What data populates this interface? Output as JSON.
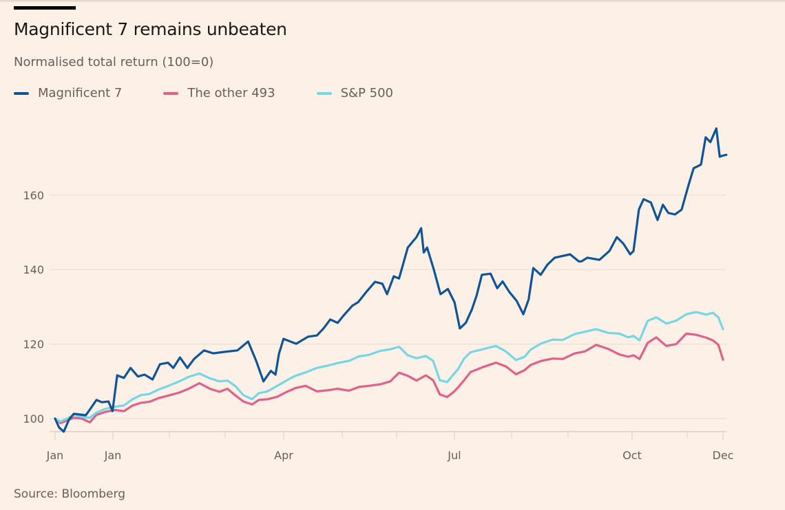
{
  "header": {
    "title": "Magnificent 7 remains unbeaten",
    "subtitle": "Normalised total return (100=0)"
  },
  "footer": {
    "source": "Source: Bloomberg"
  },
  "colors": {
    "background": "#fdf0e6",
    "mag7": "#0f5499",
    "other493": "#e0608a",
    "sp500": "#73d7e6",
    "grid": "#e6dbd2",
    "text": "#66605c"
  },
  "chart_data": {
    "type": "line",
    "title": "Magnificent 7 remains unbeaten",
    "subtitle": "Normalised total return (100=0)",
    "xlabel": "",
    "ylabel": "",
    "ylim": [
      96.5,
      180
    ],
    "yticks": [
      100,
      120,
      140,
      160
    ],
    "xlim": [
      0,
      1
    ],
    "x_ticks": [
      0,
      0.0866,
      0.1711,
      0.2546,
      0.3423,
      0.4299,
      0.5113,
      0.5979,
      0.6835,
      0.768,
      0.8639,
      0.9464,
      1.0
    ],
    "x_tick_labels": [
      {
        "pos": 0,
        "label": "Jan"
      },
      {
        "pos": 0.0866,
        "label": "Jan"
      },
      {
        "pos": 0.3423,
        "label": "Apr"
      },
      {
        "pos": 0.5979,
        "label": "Jul"
      },
      {
        "pos": 0.8639,
        "label": "Oct"
      },
      {
        "pos": 1.0,
        "label": "Dec"
      }
    ],
    "grid": true,
    "legend": "top-left",
    "source": "Source: Bloomberg",
    "series": [
      {
        "name": "Magnificent 7",
        "color": "#0f5499",
        "x": [
          0,
          0.006,
          0.013,
          0.021,
          0.028,
          0.046,
          0.052,
          0.062,
          0.07,
          0.08,
          0.086,
          0.093,
          0.103,
          0.113,
          0.124,
          0.134,
          0.146,
          0.157,
          0.169,
          0.177,
          0.187,
          0.198,
          0.208,
          0.223,
          0.237,
          0.253,
          0.273,
          0.289,
          0.301,
          0.312,
          0.323,
          0.33,
          0.335,
          0.342,
          0.361,
          0.379,
          0.392,
          0.402,
          0.412,
          0.423,
          0.433,
          0.445,
          0.454,
          0.466,
          0.479,
          0.49,
          0.497,
          0.507,
          0.515,
          0.528,
          0.541,
          0.548,
          0.552,
          0.557,
          0.567,
          0.577,
          0.588,
          0.598,
          0.606,
          0.615,
          0.624,
          0.631,
          0.639,
          0.652,
          0.662,
          0.67,
          0.68,
          0.691,
          0.701,
          0.709,
          0.716,
          0.727,
          0.737,
          0.748,
          0.771,
          0.784,
          0.788,
          0.797,
          0.815,
          0.83,
          0.841,
          0.851,
          0.861,
          0.866,
          0.874,
          0.881,
          0.892,
          0.902,
          0.91,
          0.918,
          0.928,
          0.938,
          0.948,
          0.956,
          0.967,
          0.974,
          0.981,
          0.99,
          0.995,
          1.0,
          1.005
        ],
        "y": [
          100,
          97.6,
          96.5,
          99.8,
          101.3,
          100.9,
          102.4,
          105,
          104.4,
          104.6,
          102,
          111.6,
          110.9,
          113.6,
          111.3,
          111.8,
          110.5,
          114.6,
          115,
          113.6,
          116.4,
          113.6,
          116,
          118.3,
          117.5,
          117.9,
          118.3,
          120.7,
          115.5,
          110,
          112.8,
          111.8,
          117.3,
          121.4,
          120.1,
          122,
          122.3,
          124.2,
          126.6,
          125.7,
          127.9,
          130.3,
          131.3,
          134,
          136.7,
          136.2,
          133.4,
          138.2,
          137.6,
          145.9,
          148.7,
          151.1,
          144.6,
          145.9,
          140,
          133.4,
          134.8,
          131.2,
          124.2,
          125.7,
          129.3,
          133,
          138.6,
          138.9,
          135,
          136.8,
          134,
          131.6,
          128,
          132,
          140.4,
          138.6,
          141.3,
          143.2,
          144.1,
          142.2,
          142.2,
          143.2,
          142.6,
          145,
          148.7,
          146.9,
          144.1,
          145,
          156.1,
          158.9,
          158,
          153.3,
          157.4,
          155.2,
          154.8,
          156.1,
          162.5,
          167.2,
          168.2,
          175.5,
          174.2,
          177.9,
          170.3,
          170.6,
          170.8
        ]
      },
      {
        "name": "The other 493",
        "color": "#e0608a",
        "x": [
          0,
          0.008,
          0.018,
          0.028,
          0.04,
          0.052,
          0.062,
          0.075,
          0.09,
          0.103,
          0.116,
          0.128,
          0.141,
          0.155,
          0.17,
          0.186,
          0.2,
          0.216,
          0.232,
          0.246,
          0.258,
          0.27,
          0.282,
          0.295,
          0.305,
          0.318,
          0.332,
          0.347,
          0.36,
          0.375,
          0.392,
          0.408,
          0.423,
          0.44,
          0.455,
          0.47,
          0.487,
          0.502,
          0.515,
          0.528,
          0.541,
          0.555,
          0.566,
          0.576,
          0.587,
          0.597,
          0.603,
          0.612,
          0.622,
          0.64,
          0.66,
          0.675,
          0.69,
          0.703,
          0.712,
          0.728,
          0.745,
          0.76,
          0.778,
          0.793,
          0.81,
          0.828,
          0.845,
          0.858,
          0.866,
          0.875,
          0.887,
          0.9,
          0.915,
          0.93,
          0.945,
          0.96,
          0.975,
          0.985,
          0.993,
          1.0
        ],
        "y": [
          100,
          98.8,
          99.5,
          100.2,
          100,
          99,
          101,
          101.8,
          102.3,
          102,
          103.5,
          104.2,
          104.5,
          105.5,
          106.2,
          107,
          108,
          109.5,
          108,
          107.2,
          108,
          106.2,
          104.6,
          103.8,
          105,
          105.2,
          105.8,
          107.2,
          108.2,
          108.8,
          107.3,
          107.6,
          108,
          107.5,
          108.5,
          108.8,
          109.2,
          110,
          112.3,
          111.5,
          110.2,
          111.6,
          110.3,
          106.5,
          105.8,
          107.2,
          108.3,
          110.2,
          112.5,
          113.8,
          115,
          114,
          111.9,
          113,
          114.4,
          115.5,
          116.1,
          116,
          117.5,
          118,
          119.8,
          118.7,
          117.2,
          116.6,
          117,
          116,
          120.3,
          121.8,
          119.5,
          120,
          122.8,
          122.5,
          121.7,
          121,
          119.8,
          115.8
        ]
      },
      {
        "name": "S&P 500",
        "color": "#73d7e6",
        "x": [
          0,
          0.008,
          0.018,
          0.028,
          0.04,
          0.052,
          0.062,
          0.075,
          0.09,
          0.103,
          0.116,
          0.128,
          0.141,
          0.155,
          0.17,
          0.186,
          0.2,
          0.216,
          0.232,
          0.246,
          0.258,
          0.27,
          0.282,
          0.295,
          0.305,
          0.318,
          0.332,
          0.347,
          0.36,
          0.375,
          0.392,
          0.408,
          0.423,
          0.44,
          0.455,
          0.47,
          0.487,
          0.502,
          0.515,
          0.528,
          0.541,
          0.555,
          0.566,
          0.576,
          0.587,
          0.597,
          0.603,
          0.612,
          0.622,
          0.64,
          0.66,
          0.675,
          0.69,
          0.703,
          0.712,
          0.728,
          0.745,
          0.76,
          0.778,
          0.793,
          0.81,
          0.828,
          0.845,
          0.858,
          0.866,
          0.875,
          0.887,
          0.9,
          0.915,
          0.93,
          0.945,
          0.96,
          0.975,
          0.985,
          0.993,
          1.0
        ],
        "y": [
          100,
          99.2,
          100,
          101,
          100.5,
          100.2,
          101.6,
          102.6,
          103.2,
          103.5,
          105.2,
          106.3,
          106.6,
          107.8,
          108.8,
          110,
          111.2,
          112.1,
          110.8,
          110,
          110.2,
          108.7,
          106.3,
          105.2,
          106.8,
          107.3,
          108.7,
          110.3,
          111.5,
          112.4,
          113.6,
          114.2,
          114.9,
          115.5,
          116.7,
          117.1,
          118.2,
          118.6,
          119.3,
          117,
          116.2,
          116.8,
          115.5,
          110.3,
          109.8,
          112,
          113.2,
          116,
          117.8,
          118.6,
          119.5,
          118,
          115.7,
          116.6,
          118.5,
          120.2,
          121.2,
          121.1,
          122.7,
          123.3,
          124,
          123,
          122.8,
          121.8,
          122.2,
          121,
          126.2,
          127.2,
          125.5,
          126.3,
          128,
          128.6,
          127.9,
          128.4,
          127.2,
          124
        ]
      }
    ]
  }
}
